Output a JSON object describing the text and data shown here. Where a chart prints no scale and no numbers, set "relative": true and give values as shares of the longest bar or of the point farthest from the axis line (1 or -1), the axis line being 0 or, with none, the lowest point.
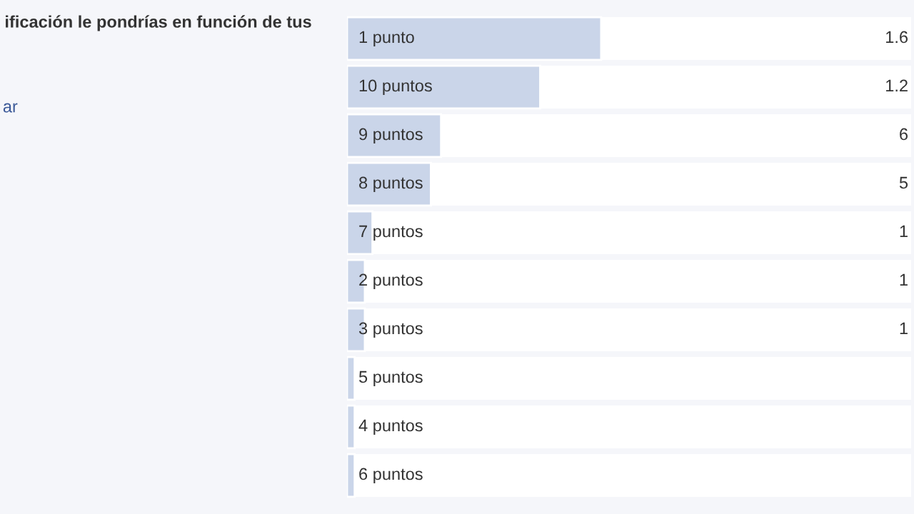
{
  "chart_data": {
    "type": "bar",
    "orientation": "horizontal",
    "relative": true,
    "title": "ificación le pondrías en función de tus",
    "annotations": [
      "ar",
      "1.6",
      "1.2",
      "6",
      "5",
      "1",
      "1",
      "1"
    ],
    "categories": [
      "1 punto",
      "10 puntos",
      "9 puntos",
      "8 puntos",
      "7 puntos",
      "2 puntos",
      "3 puntos",
      "5 puntos",
      "4 puntos",
      "6 puntos"
    ],
    "values": [
      1,
      0.76,
      0.37,
      0.33,
      0.1,
      0.07,
      0.07,
      0.03,
      0.03,
      0.03
    ],
    "color": "#cad5e9"
  }
}
